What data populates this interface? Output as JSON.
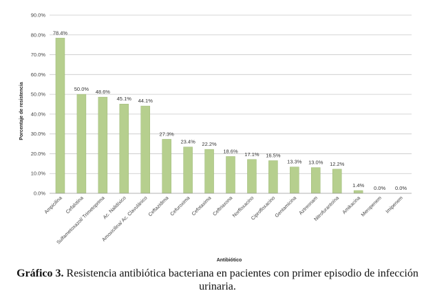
{
  "chart_data": {
    "type": "bar",
    "categories": [
      "Ampicilina",
      "Cefalotina",
      "Sulfametoxazol/ Trimetoprima",
      "Ac. Nalidíxico",
      "Amoxicilina/ Ac. Clavulánico",
      "Ceftazidima",
      "Cefuroxima",
      "Cefotaxima",
      "Ceftriaxona",
      "Norfloxacino",
      "Ciprofloxacino",
      "Gentamicina",
      "Aztreonam",
      "Nitrofurantoína",
      "Amikacina",
      "Meropenem",
      "Imipenem"
    ],
    "values": [
      78.4,
      50.0,
      48.6,
      45.1,
      44.1,
      27.3,
      23.4,
      22.2,
      18.6,
      17.1,
      16.5,
      13.3,
      13.0,
      12.2,
      1.4,
      0.0,
      0.0
    ],
    "data_labels": [
      "78.4%",
      "50.0%",
      "48.6%",
      "45.1%",
      "44.1%",
      "27.3%",
      "23.4%",
      "22.2%",
      "18.6%",
      "17.1%",
      "16.5%",
      "13.3%",
      "13.0%",
      "12.2%",
      "1.4%",
      "0.0%",
      "0.0%"
    ],
    "y_ticks": [
      "0.0%",
      "10.0%",
      "20.0%",
      "30.0%",
      "40.0%",
      "50.0%",
      "60.0%",
      "70.0%",
      "80.0%",
      "90.0%"
    ],
    "ylim": [
      0,
      90
    ],
    "xlabel": "Antibiótico",
    "ylabel": "Porcentaje de resistencia",
    "grid": true,
    "bar_color": "#b6cf8e",
    "bar_edge_color": "#9cb874"
  },
  "caption": {
    "label": "Gráfico 3.",
    "text": " Resistencia antibiótica bacteriana en pacientes con primer episodio de infección urinaria."
  }
}
